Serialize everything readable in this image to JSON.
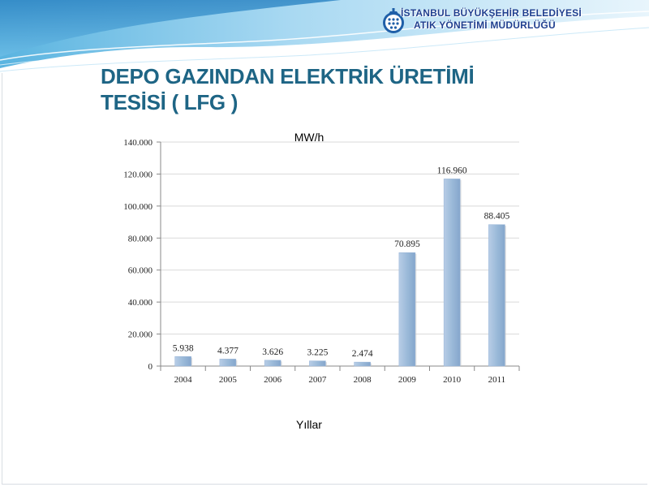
{
  "header": {
    "org_line1": "İSTANBUL BÜYÜKŞEHİR BELEDİYESİ",
    "org_line2": "ATIK YÖNETİMİ MÜDÜRLÜĞÜ"
  },
  "slide": {
    "title_line1": "DEPO GAZINDAN ELEKTRİK ÜRETİMİ",
    "title_line2": "TESİSİ ( LFG )"
  },
  "colors": {
    "bar": "#95b3d7",
    "title": "#1e6585",
    "org": "#1f3f8f"
  },
  "chart_data": {
    "type": "bar",
    "title": "",
    "ylabel": "MW/h",
    "xlabel": "Yıllar",
    "categories": [
      "2004",
      "2005",
      "2006",
      "2007",
      "2008",
      "2009",
      "2010",
      "2011"
    ],
    "values": [
      5938,
      4377,
      3626,
      3225,
      2474,
      70895,
      116960,
      88405
    ],
    "value_labels": [
      "5.938",
      "4.377",
      "3.626",
      "3.225",
      "2.474",
      "70.895",
      "116.960",
      "88.405"
    ],
    "ylim": [
      0,
      140000
    ],
    "yticks": [
      0,
      20000,
      40000,
      60000,
      80000,
      100000,
      120000,
      140000
    ],
    "ytick_labels": [
      "0",
      "20.000",
      "40.000",
      "60.000",
      "80.000",
      "100.000",
      "120.000",
      "140.000"
    ],
    "grid": true,
    "legend": "none"
  }
}
